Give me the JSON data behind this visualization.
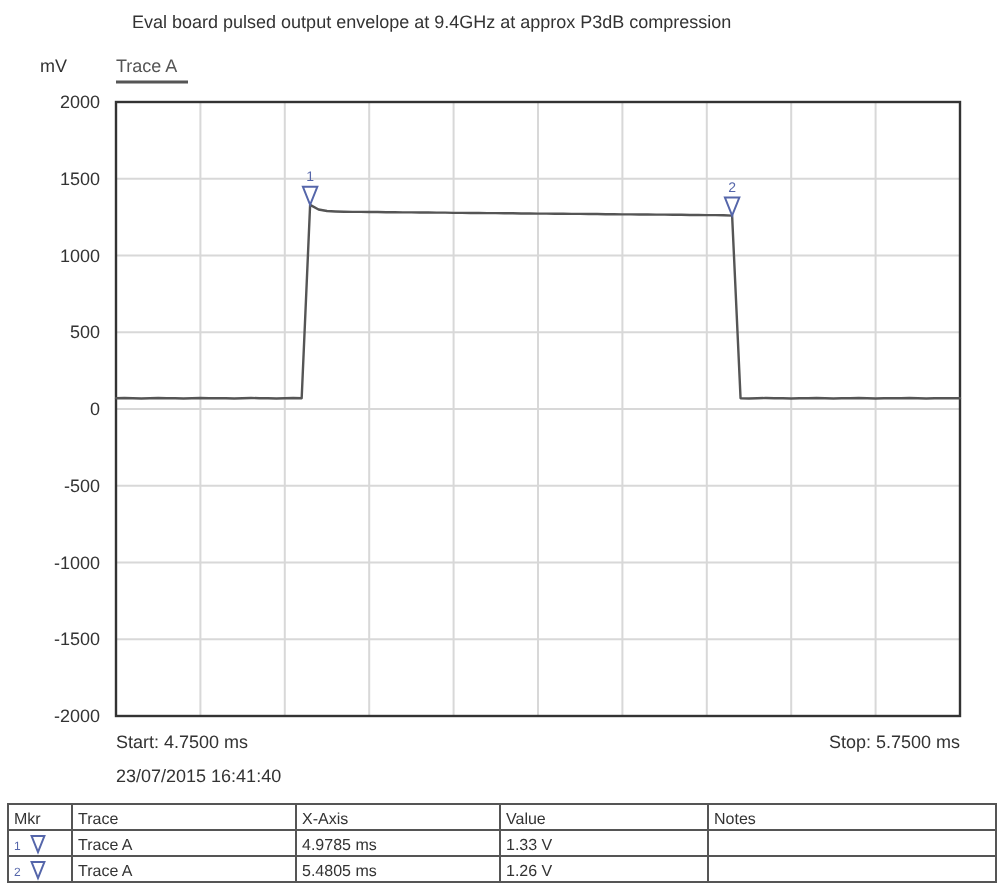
{
  "chart_data": {
    "type": "line",
    "title": "Eval board pulsed output envelope at 9.4GHz at approx P3dB compression",
    "ylabel": "mV",
    "categories": [
      null,
      null,
      null,
      null,
      null,
      null,
      null,
      null,
      null,
      null,
      null,
      null,
      null,
      null,
      null,
      null,
      null,
      null,
      null,
      null,
      null,
      null,
      null,
      null,
      null,
      null,
      null,
      null,
      null,
      null,
      null,
      null,
      null,
      null,
      null,
      null,
      null,
      null,
      null,
      null,
      null,
      null,
      null,
      null,
      null,
      null,
      null,
      null,
      null,
      null,
      null,
      null,
      null,
      null,
      null,
      null,
      null,
      null,
      null,
      null,
      null,
      null,
      null,
      null,
      null,
      null,
      null,
      null,
      null,
      null,
      null,
      null,
      null,
      null,
      null,
      null,
      null,
      null,
      null,
      null,
      null,
      null,
      null,
      null,
      null,
      null,
      null,
      null,
      null,
      null,
      null,
      null,
      null,
      null,
      null,
      null,
      null,
      null,
      null,
      null,
      null
    ],
    "series": [
      {
        "name": "Trace A",
        "color": "#555555",
        "values": [
          70,
          72,
          70,
          68,
          70,
          72,
          70,
          70,
          68,
          70,
          72,
          70,
          70,
          70,
          68,
          70,
          72,
          70,
          70,
          68,
          70,
          72,
          70,
          1330,
          1300,
          1290,
          1287,
          1285,
          1284,
          1284,
          1283,
          1283,
          1282,
          1282,
          1281,
          1281,
          1280,
          1280,
          1279,
          1279,
          1278,
          1278,
          1277,
          1277,
          1276,
          1276,
          1275,
          1275,
          1274,
          1274,
          1273,
          1273,
          1272,
          1272,
          1271,
          1271,
          1270,
          1270,
          1269,
          1269,
          1268,
          1268,
          1267,
          1267,
          1266,
          1266,
          1265,
          1265,
          1264,
          1264,
          1263,
          1263,
          1262,
          1260,
          70,
          68,
          70,
          72,
          70,
          70,
          68,
          70,
          70,
          72,
          70,
          68,
          70,
          70,
          72,
          70,
          68,
          70,
          70,
          70,
          72,
          70,
          68,
          70,
          70,
          70,
          70
        ]
      }
    ],
    "ylim": [
      -2000,
      2000
    ],
    "yticks": [
      -2000,
      -1500,
      -1000,
      -500,
      0,
      500,
      1000,
      1500,
      2000
    ],
    "grid": true,
    "line_style": "solid",
    "annotations": [
      {
        "text": "1",
        "y": 1330
      },
      {
        "text": "2",
        "y": 1260
      },
      "Start: 4.7500 ms",
      "Stop: 5.7500 ms",
      "23/07/2015 16:41:40",
      "Mkr",
      "Trace",
      "X-Axis",
      "Value",
      "Notes",
      "1",
      "Trace A",
      "4.9785 ms",
      "1.33 V",
      "2",
      "Trace A",
      "5.4805 ms",
      "1.26 V"
    ]
  }
}
